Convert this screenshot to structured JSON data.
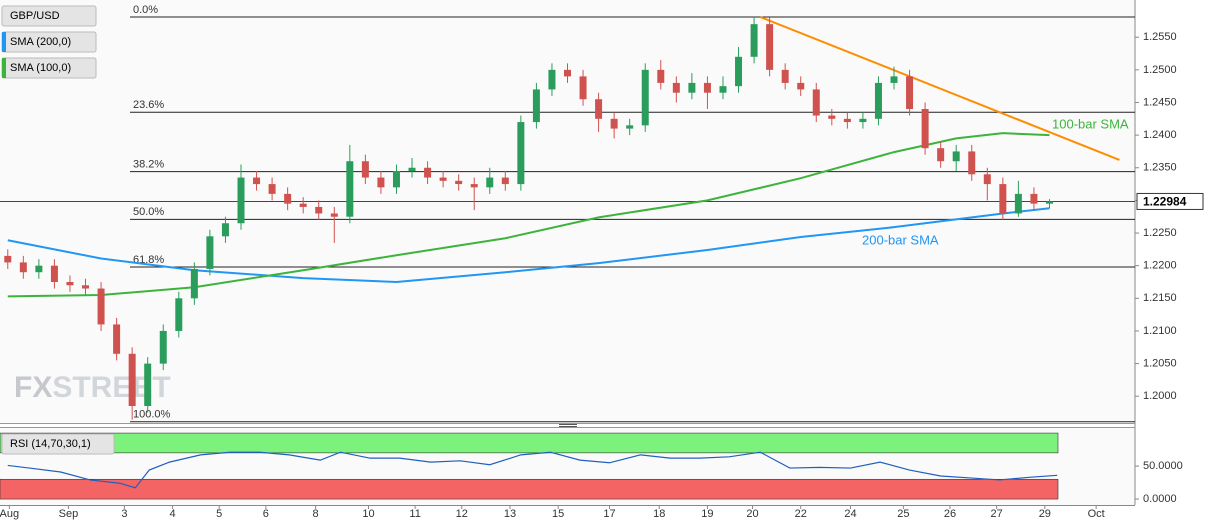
{
  "chart_data": [
    {
      "type": "candlestick",
      "legend": [
        "GBP/USD",
        "SMA (200,0)",
        "SMA (100,0)"
      ],
      "xlim": [
        -0.5,
        72.5
      ],
      "ylim": [
        1.1959,
        1.2607
      ],
      "yticks": [
        {
          "value": 1.255,
          "label": "1.2550"
        },
        {
          "value": 1.25,
          "label": "1.2500"
        },
        {
          "value": 1.245,
          "label": "1.2450"
        },
        {
          "value": 1.24,
          "label": "1.2400"
        },
        {
          "value": 1.235,
          "label": "1.2350"
        },
        {
          "value": 1.23,
          "label": "1.2300"
        },
        {
          "value": 1.225,
          "label": "1.2250"
        },
        {
          "value": 1.22,
          "label": "1.2200"
        },
        {
          "value": 1.215,
          "label": "1.2150"
        },
        {
          "value": 1.21,
          "label": "1.2100"
        },
        {
          "value": 1.205,
          "label": "1.2050"
        },
        {
          "value": 1.2,
          "label": "1.2000"
        }
      ],
      "open": [
        1.2215,
        1.2205,
        1.219,
        1.22,
        1.2175,
        1.217,
        1.2165,
        1.211,
        1.2065,
        1.1985,
        1.205,
        1.21,
        1.215,
        1.2195,
        1.2245,
        1.2265,
        1.2335,
        1.2325,
        1.231,
        1.2295,
        1.229,
        1.228,
        1.2275,
        1.236,
        1.2335,
        1.232,
        1.2345,
        1.235,
        1.2335,
        1.233,
        1.2325,
        1.232,
        1.2335,
        1.2325,
        1.242,
        1.247,
        1.25,
        1.249,
        1.2455,
        1.2425,
        1.241,
        1.2415,
        1.25,
        1.248,
        1.2465,
        1.248,
        1.2465,
        1.2475,
        1.252,
        1.257,
        1.25,
        1.248,
        1.247,
        1.243,
        1.2425,
        1.242,
        1.2425,
        1.248,
        1.249,
        1.244,
        1.238,
        1.236,
        1.2375,
        1.234,
        1.2325,
        1.228,
        1.231,
        1.2295
      ],
      "high": [
        1.2225,
        1.2215,
        1.221,
        1.221,
        1.2185,
        1.218,
        1.2175,
        1.212,
        1.2075,
        1.206,
        1.211,
        1.216,
        1.2205,
        1.2255,
        1.2275,
        1.2355,
        1.2345,
        1.2335,
        1.232,
        1.2305,
        1.23,
        1.229,
        1.2385,
        1.237,
        1.2345,
        1.2355,
        1.2365,
        1.236,
        1.2345,
        1.234,
        1.2335,
        1.235,
        1.2345,
        1.243,
        1.248,
        1.251,
        1.251,
        1.25,
        1.2465,
        1.2435,
        1.2425,
        1.251,
        1.2515,
        1.249,
        1.2495,
        1.249,
        1.249,
        1.2535,
        1.2581,
        1.258,
        1.251,
        1.249,
        1.248,
        1.244,
        1.2435,
        1.2435,
        1.249,
        1.2505,
        1.25,
        1.245,
        1.239,
        1.2385,
        1.2385,
        1.235,
        1.2335,
        1.233,
        1.232,
        1.2302
      ],
      "low": [
        1.2195,
        1.218,
        1.218,
        1.2165,
        1.216,
        1.2155,
        1.21,
        1.2055,
        1.1964,
        1.1975,
        1.204,
        1.209,
        1.214,
        1.2185,
        1.2235,
        1.2255,
        1.2315,
        1.23,
        1.2285,
        1.228,
        1.227,
        1.2235,
        1.2265,
        1.2325,
        1.231,
        1.231,
        1.2335,
        1.2325,
        1.232,
        1.2315,
        1.2285,
        1.231,
        1.2315,
        1.2315,
        1.241,
        1.246,
        1.248,
        1.2445,
        1.2405,
        1.2395,
        1.24,
        1.2405,
        1.247,
        1.245,
        1.2455,
        1.244,
        1.2455,
        1.2465,
        1.251,
        1.249,
        1.247,
        1.246,
        1.242,
        1.2415,
        1.241,
        1.241,
        1.2415,
        1.247,
        1.243,
        1.237,
        1.235,
        1.2345,
        1.233,
        1.23,
        1.227,
        1.2275,
        1.2285,
        1.2288
      ],
      "close": [
        1.2205,
        1.219,
        1.22,
        1.2175,
        1.217,
        1.2165,
        1.211,
        1.2065,
        1.1985,
        1.205,
        1.21,
        1.215,
        1.2195,
        1.2245,
        1.2265,
        1.2335,
        1.2325,
        1.231,
        1.2295,
        1.229,
        1.228,
        1.2275,
        1.236,
        1.2335,
        1.232,
        1.2345,
        1.235,
        1.2335,
        1.233,
        1.2325,
        1.232,
        1.2335,
        1.2325,
        1.242,
        1.247,
        1.25,
        1.249,
        1.2455,
        1.2425,
        1.241,
        1.2415,
        1.25,
        1.248,
        1.2465,
        1.248,
        1.2465,
        1.2475,
        1.252,
        1.257,
        1.25,
        1.248,
        1.247,
        1.243,
        1.2425,
        1.242,
        1.2425,
        1.248,
        1.249,
        1.244,
        1.238,
        1.236,
        1.2375,
        1.234,
        1.2325,
        1.228,
        1.231,
        1.2295,
        1.22984
      ],
      "up_color": "#2a9d5c",
      "down_color": "#d0524f",
      "series": [
        {
          "name": "200-bar SMA",
          "color": "#2196f3",
          "x": [
            0,
            6,
            12,
            19,
            25,
            32,
            38,
            45,
            51,
            57,
            64,
            67
          ],
          "values": [
            1.2239,
            1.2211,
            1.2193,
            1.2181,
            1.2175,
            1.219,
            1.2204,
            1.2224,
            1.2244,
            1.2259,
            1.228,
            1.2288
          ]
        },
        {
          "name": "100-bar SMA",
          "color": "#3cb43c",
          "x": [
            0,
            6,
            12,
            19,
            25,
            32,
            38,
            45,
            51,
            57,
            61,
            64,
            67
          ],
          "values": [
            1.2153,
            1.2155,
            1.2167,
            1.2193,
            1.2216,
            1.2242,
            1.2274,
            1.23,
            1.2334,
            1.2374,
            1.2395,
            1.2403,
            1.24
          ]
        }
      ],
      "trendline": {
        "color": "#ff8c00",
        "x": [
          48.4,
          71.5
        ],
        "values": [
          1.2581,
          1.2362
        ]
      },
      "fibs": [
        {
          "label": "0.0%",
          "value": 1.2581
        },
        {
          "label": "23.6%",
          "value": 1.2435
        },
        {
          "label": "38.2%",
          "value": 1.2344
        },
        {
          "label": "50.0%",
          "value": 1.2271
        },
        {
          "label": "61.8%",
          "value": 1.2198
        },
        {
          "label": "100.0%",
          "value": 1.1961
        }
      ],
      "last_price": 1.22984,
      "watermark": [
        "FX",
        "STREET"
      ]
    },
    {
      "type": "line",
      "legend": [
        "RSI (14,70,30,1)"
      ],
      "xlim": [
        -0.5,
        72.5
      ],
      "ylim": [
        -9,
        107.7
      ],
      "yticks": [
        {
          "value": 50,
          "label": "50.0000"
        },
        {
          "value": 0,
          "label": "0.0000"
        }
      ],
      "overbought": [
        70,
        100
      ],
      "oversold": [
        0,
        30
      ],
      "xticks": [
        {
          "value": 0.1,
          "label": "Aug"
        },
        {
          "value": 3.9,
          "label": "Sep"
        },
        {
          "value": 7.5,
          "label": "3"
        },
        {
          "value": 10.6,
          "label": "4"
        },
        {
          "value": 13.6,
          "label": "5"
        },
        {
          "value": 16.6,
          "label": "6"
        },
        {
          "value": 19.8,
          "label": "8"
        },
        {
          "value": 23.2,
          "label": "10"
        },
        {
          "value": 26.2,
          "label": "11"
        },
        {
          "value": 29.2,
          "label": "12"
        },
        {
          "value": 32.3,
          "label": "13"
        },
        {
          "value": 35.4,
          "label": "15"
        },
        {
          "value": 38.7,
          "label": "17"
        },
        {
          "value": 41.9,
          "label": "18"
        },
        {
          "value": 45,
          "label": "19"
        },
        {
          "value": 47.9,
          "label": "20"
        },
        {
          "value": 51,
          "label": "22"
        },
        {
          "value": 54.2,
          "label": "24"
        },
        {
          "value": 57.6,
          "label": "25"
        },
        {
          "value": 60.6,
          "label": "26"
        },
        {
          "value": 63.6,
          "label": "27"
        },
        {
          "value": 66.7,
          "label": "29"
        },
        {
          "value": 70,
          "label": "Oct"
        }
      ],
      "series": [
        {
          "color": "#1f5fbf",
          "x": [
            0,
            1.4,
            3.4,
            5.3,
            7.2,
            8.2,
            9.1,
            10.4,
            12.4,
            14.3,
            16.2,
            18.1,
            20.1,
            21.4,
            23.3,
            25.2,
            27.2,
            29.1,
            31,
            33,
            34.9,
            36.8,
            38.7,
            40.7,
            42.6,
            44.5,
            46.4,
            48.4,
            50.3,
            52.2,
            54.2,
            56.1,
            58,
            60,
            61.9,
            63.8,
            65.7,
            67.5
          ],
          "values": [
            51,
            47,
            41,
            29,
            24,
            17,
            44,
            56,
            67,
            71,
            71,
            67,
            59,
            71,
            62,
            62,
            56,
            58,
            52,
            67,
            71,
            59,
            55,
            67,
            62,
            62,
            64,
            71,
            47,
            48,
            47,
            56,
            44,
            35,
            32,
            29,
            33,
            36
          ]
        }
      ]
    }
  ]
}
